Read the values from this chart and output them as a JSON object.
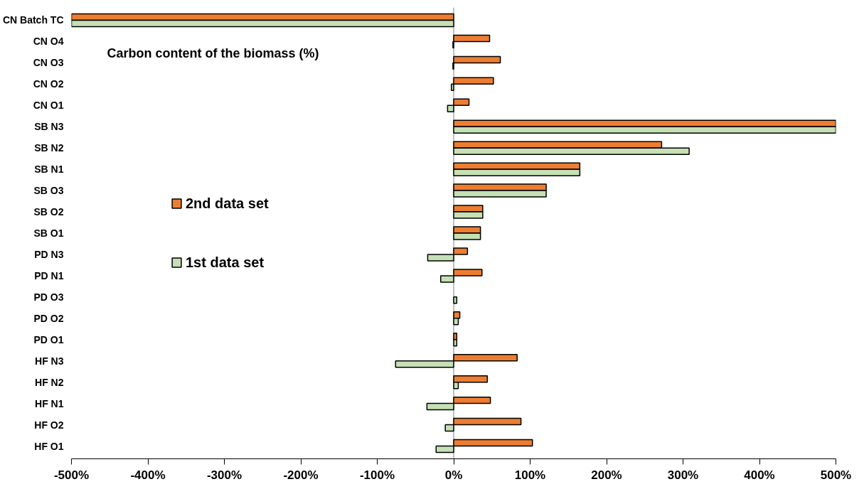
{
  "chart_data": {
    "type": "bar",
    "orientation": "horizontal",
    "title": "Carbon content of the biomass (%)",
    "categories": [
      "CN Batch TC",
      "CN O4",
      "CN O3",
      "CN O2",
      "CN O1",
      "SB N3",
      "SB N2",
      "SB N1",
      "SB O3",
      "SB O2",
      "SB O1",
      "PD N3",
      "PD N1",
      "PD O3",
      "PD O2",
      "PD O1",
      "HF N3",
      "HF N2",
      "HF N1",
      "HF O2",
      "HF O1"
    ],
    "series": [
      {
        "name": "2nd data set",
        "color": "#ed7d31",
        "values": [
          -500,
          47,
          61,
          52,
          20,
          500,
          272,
          165,
          121,
          38,
          35,
          18,
          37,
          null,
          8,
          4,
          83,
          44,
          48,
          88,
          103
        ]
      },
      {
        "name": "1st data set",
        "color": "#c5e0b4",
        "values": [
          -500,
          -1,
          -1,
          -3,
          -8,
          500,
          308,
          165,
          121,
          38,
          35,
          -34,
          -17,
          4,
          6,
          4,
          -76,
          6,
          -35,
          -11,
          -23
        ]
      }
    ],
    "xlim": [
      -500,
      500
    ],
    "xticks": [
      {
        "value": -500,
        "label": "-500%"
      },
      {
        "value": -400,
        "label": "-400%"
      },
      {
        "value": -300,
        "label": "-300%"
      },
      {
        "value": -200,
        "label": "-200%"
      },
      {
        "value": -100,
        "label": "-100%"
      },
      {
        "value": 0,
        "label": "0%"
      },
      {
        "value": 100,
        "label": "100%"
      },
      {
        "value": 200,
        "label": "200%"
      },
      {
        "value": 300,
        "label": "300%"
      },
      {
        "value": 400,
        "label": "400%"
      },
      {
        "value": 500,
        "label": "500%"
      }
    ],
    "ref_lines": [
      {
        "axis": "x",
        "value": 0,
        "color": "#bfbfbf"
      }
    ],
    "legend": "left",
    "grid": false
  }
}
